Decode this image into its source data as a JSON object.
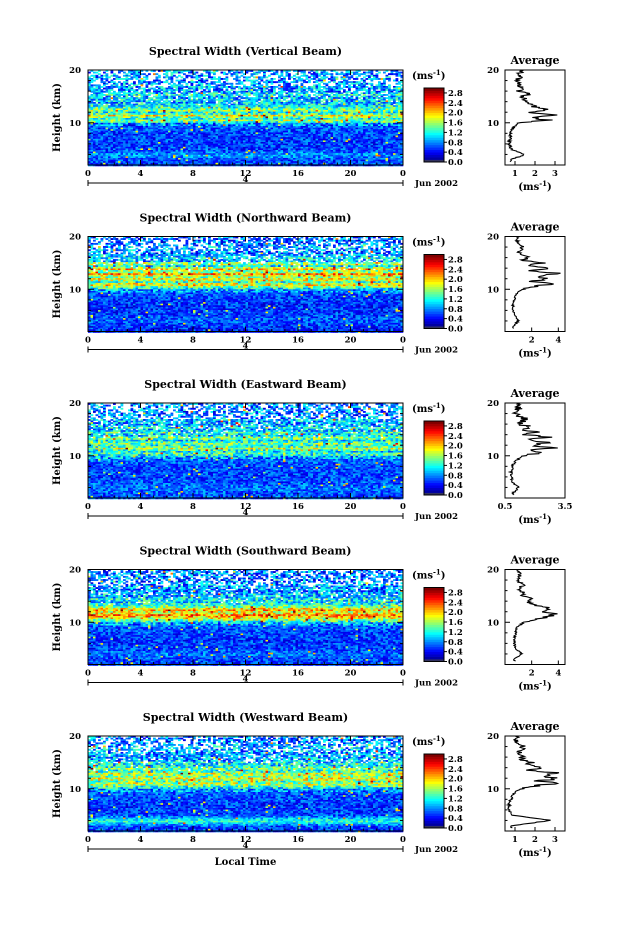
{
  "chart_data": [
    {
      "type": "heatmap",
      "title": "Spectral Width (Vertical Beam)",
      "ylabel": "Height (km)",
      "xlim": [
        0,
        24
      ],
      "ylim": [
        2,
        20
      ],
      "x_ticks": [
        "0",
        "4",
        "8",
        "12",
        "16",
        "20",
        "0"
      ],
      "y_ticks": [
        "20",
        "10"
      ],
      "date_marker": "4",
      "date_label": "Jun 2002",
      "colorbar": {
        "unit": "(ms-1)",
        "ticks": [
          "2.8",
          "2.4",
          "2.0",
          "1.6",
          "1.2",
          "0.8",
          "0.4",
          "0.0"
        ],
        "range": [
          0,
          3
        ]
      },
      "profile": {
        "title": "Average",
        "xlabel": "(ms-1)",
        "x_ticks": [
          "1",
          "2",
          "3"
        ],
        "xlim": [
          0.5,
          3.5
        ],
        "heights": [
          3,
          4,
          5,
          6,
          7,
          8,
          9,
          10,
          10.5,
          11,
          11.5,
          12,
          12.5,
          13,
          13.5,
          14,
          14.5,
          15,
          15.5,
          16,
          17,
          18,
          19,
          20
        ],
        "values": [
          0.8,
          1.5,
          0.8,
          0.7,
          0.75,
          0.8,
          0.9,
          1.2,
          2.8,
          1.8,
          3.2,
          1.6,
          2.6,
          2.0,
          1.7,
          1.4,
          1.6,
          1.3,
          1.9,
          1.2,
          1.3,
          1.1,
          1.3,
          1.2
        ]
      }
    },
    {
      "type": "heatmap",
      "title": "Spectral Width (Northward Beam)",
      "ylabel": "Height (km)",
      "xlim": [
        0,
        24
      ],
      "ylim": [
        2,
        20
      ],
      "x_ticks": [
        "0",
        "4",
        "8",
        "12",
        "16",
        "20",
        "0"
      ],
      "y_ticks": [
        "20",
        "10"
      ],
      "date_marker": "4",
      "date_label": "Jun 2002",
      "colorbar": {
        "unit": "(ms-1)",
        "ticks": [
          "2.8",
          "2.4",
          "2.0",
          "1.6",
          "1.2",
          "0.8",
          "0.4",
          "0.0"
        ],
        "range": [
          0,
          3
        ]
      },
      "profile": {
        "title": "Average",
        "xlabel": "(ms-1)",
        "x_ticks": [
          "2",
          "4"
        ],
        "xlim": [
          0,
          4.5
        ],
        "heights": [
          3,
          4,
          5,
          6,
          7,
          8,
          9,
          10,
          10.5,
          11,
          11.5,
          12,
          12.5,
          13,
          13.5,
          14,
          14.5,
          15,
          15.5,
          16,
          17,
          18,
          19,
          20
        ],
        "values": [
          0.6,
          1.0,
          0.8,
          0.6,
          0.6,
          0.7,
          0.8,
          1.3,
          2.2,
          3.5,
          2.0,
          3.2,
          2.4,
          3.8,
          2.0,
          3.6,
          1.5,
          3.0,
          1.2,
          1.8,
          1.0,
          1.4,
          0.9,
          1.0
        ]
      }
    },
    {
      "type": "heatmap",
      "title": "Spectral Width (Eastward Beam)",
      "ylabel": "Height (km)",
      "xlim": [
        0,
        24
      ],
      "ylim": [
        2,
        20
      ],
      "x_ticks": [
        "0",
        "4",
        "8",
        "12",
        "16",
        "20",
        "0"
      ],
      "y_ticks": [
        "20",
        "10"
      ],
      "date_marker": "4",
      "date_label": "Jun 2002",
      "colorbar": {
        "unit": "(ms-1)",
        "ticks": [
          "2.8",
          "2.4",
          "2.0",
          "1.6",
          "1.2",
          "0.8",
          "0.4",
          "0.0"
        ],
        "range": [
          0,
          3
        ]
      },
      "profile": {
        "title": "Average",
        "xlabel": "(ms-1)",
        "x_ticks": [
          "0.5",
          "3.5"
        ],
        "xlim": [
          0.5,
          3.5
        ],
        "heights": [
          3,
          4,
          5,
          6,
          7,
          8,
          9,
          10,
          10.5,
          11,
          11.5,
          12,
          12.5,
          13,
          13.5,
          14,
          14.5,
          15,
          15.5,
          16,
          17,
          18,
          19,
          20
        ],
        "values": [
          0.9,
          1.2,
          0.9,
          0.8,
          0.8,
          0.9,
          1.0,
          1.4,
          2.3,
          1.6,
          2.8,
          1.8,
          2.5,
          1.7,
          2.6,
          1.5,
          2.0,
          1.3,
          1.8,
          1.2,
          1.5,
          1.0,
          1.2,
          1.1
        ]
      }
    },
    {
      "type": "heatmap",
      "title": "Spectral Width (Southward Beam)",
      "ylabel": "Height (km)",
      "xlim": [
        0,
        24
      ],
      "ylim": [
        2,
        20
      ],
      "x_ticks": [
        "0",
        "4",
        "8",
        "12",
        "16",
        "20",
        "0"
      ],
      "y_ticks": [
        "20",
        "10"
      ],
      "date_marker": "4",
      "date_label": "Jun 2002",
      "colorbar": {
        "unit": "(ms-1)",
        "ticks": [
          "2.8",
          "2.4",
          "2.0",
          "1.6",
          "1.2",
          "0.8",
          "0.4",
          "0.0"
        ],
        "range": [
          0,
          3
        ]
      },
      "profile": {
        "title": "Average",
        "xlabel": "(ms-1)",
        "x_ticks": [
          "2",
          "4"
        ],
        "xlim": [
          0,
          4.5
        ],
        "heights": [
          3,
          4,
          5,
          6,
          7,
          8,
          9,
          10,
          10.5,
          11,
          11.5,
          12,
          12.5,
          13,
          13.5,
          14,
          14.5,
          15,
          15.5,
          16,
          17,
          18,
          19,
          20
        ],
        "values": [
          0.7,
          1.3,
          0.8,
          0.7,
          0.7,
          0.8,
          0.9,
          1.4,
          2.4,
          3.2,
          3.9,
          2.8,
          3.6,
          2.5,
          2.0,
          1.6,
          1.9,
          1.3,
          1.5,
          1.1,
          1.3,
          1.0,
          1.1,
          1.0
        ]
      }
    },
    {
      "type": "heatmap",
      "title": "Spectral Width (Westward Beam)",
      "xlabel": "Local Time",
      "ylabel": "Height (km)",
      "xlim": [
        0,
        24
      ],
      "ylim": [
        2,
        20
      ],
      "x_ticks": [
        "0",
        "4",
        "8",
        "12",
        "16",
        "20",
        "0"
      ],
      "y_ticks": [
        "20",
        "10"
      ],
      "date_marker": "4",
      "date_label": "Jun 2002",
      "colorbar": {
        "unit": "(ms-1)",
        "ticks": [
          "2.8",
          "2.4",
          "2.0",
          "1.6",
          "1.2",
          "0.8",
          "0.4",
          "0.0"
        ],
        "range": [
          0,
          3
        ]
      },
      "profile": {
        "title": "Average",
        "xlabel": "(ms-1)",
        "x_ticks": [
          "1",
          "2",
          "3"
        ],
        "xlim": [
          0.5,
          3.5
        ],
        "heights": [
          3,
          4,
          5,
          6,
          7,
          8,
          9,
          10,
          10.5,
          11,
          11.5,
          12,
          12.5,
          13,
          13.5,
          14,
          14.5,
          15,
          15.5,
          16,
          17,
          18,
          19,
          20
        ],
        "values": [
          0.8,
          2.8,
          0.9,
          0.7,
          0.7,
          0.8,
          0.9,
          1.3,
          2.0,
          3.0,
          2.2,
          3.1,
          2.4,
          2.9,
          1.8,
          2.5,
          1.6,
          1.9,
          1.3,
          1.4,
          1.2,
          1.5,
          1.0,
          1.2
        ]
      }
    }
  ]
}
